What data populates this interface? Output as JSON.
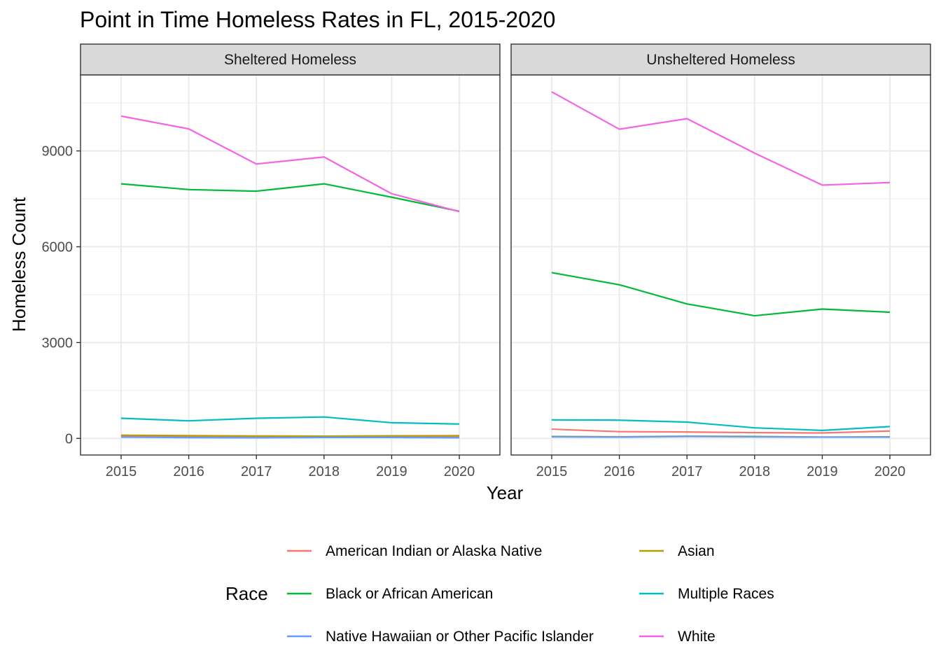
{
  "chart_data": {
    "type": "line",
    "title": "Point in Time Homeless Rates in FL, 2015-2020",
    "xlabel": "Year",
    "ylabel": "Homeless Count",
    "x": [
      2015,
      2016,
      2017,
      2018,
      2019,
      2020
    ],
    "x_tick_labels": [
      "2015",
      "2016",
      "2017",
      "2018",
      "2019",
      "2020"
    ],
    "y_ticks": [
      0,
      3000,
      6000,
      9000
    ],
    "y_tick_labels": [
      "0",
      "3000",
      "6000",
      "9000"
    ],
    "ylim": [
      -520,
      11380
    ],
    "grid": true,
    "legend": {
      "title": "Race",
      "position": "bottom"
    },
    "series_styles": [
      {
        "name": "American Indian or Alaska Native",
        "color": "#F8766D"
      },
      {
        "name": "Asian",
        "color": "#B79F00"
      },
      {
        "name": "Black or African American",
        "color": "#00BA38"
      },
      {
        "name": "Multiple Races",
        "color": "#00BFC4"
      },
      {
        "name": "Native Hawaiian or Other Pacific Islander",
        "color": "#619CFF"
      },
      {
        "name": "White",
        "color": "#F564E3"
      }
    ],
    "panels": [
      {
        "strip": "Sheltered Homeless",
        "series": [
          {
            "name": "American Indian or Alaska Native",
            "values": [
              60,
              50,
              45,
              50,
              55,
              50
            ]
          },
          {
            "name": "Asian",
            "values": [
              100,
              85,
              75,
              70,
              80,
              85
            ]
          },
          {
            "name": "Black or African American",
            "values": [
              7970,
              7790,
              7740,
              7970,
              7550,
              7110
            ]
          },
          {
            "name": "Multiple Races",
            "values": [
              630,
              550,
              630,
              670,
              490,
              450
            ]
          },
          {
            "name": "Native Hawaiian or Other Pacific Islander",
            "values": [
              40,
              25,
              20,
              30,
              30,
              20
            ]
          },
          {
            "name": "White",
            "values": [
              10090,
              9690,
              8590,
              8810,
              7660,
              7100
            ]
          }
        ]
      },
      {
        "strip": "Unsheltered Homeless",
        "series": [
          {
            "name": "American Indian or Alaska Native",
            "values": [
              290,
              210,
              200,
              180,
              170,
              230
            ]
          },
          {
            "name": "Asian",
            "values": [
              60,
              50,
              70,
              60,
              40,
              50
            ]
          },
          {
            "name": "Black or African American",
            "values": [
              5190,
              4810,
              4210,
              3840,
              4050,
              3950
            ]
          },
          {
            "name": "Multiple Races",
            "values": [
              580,
              570,
              510,
              330,
              250,
              370
            ]
          },
          {
            "name": "Native Hawaiian or Other Pacific Islander",
            "values": [
              50,
              40,
              60,
              50,
              40,
              40
            ]
          },
          {
            "name": "White",
            "values": [
              10850,
              9680,
              10010,
              8930,
              7930,
              8010
            ]
          }
        ]
      }
    ]
  }
}
